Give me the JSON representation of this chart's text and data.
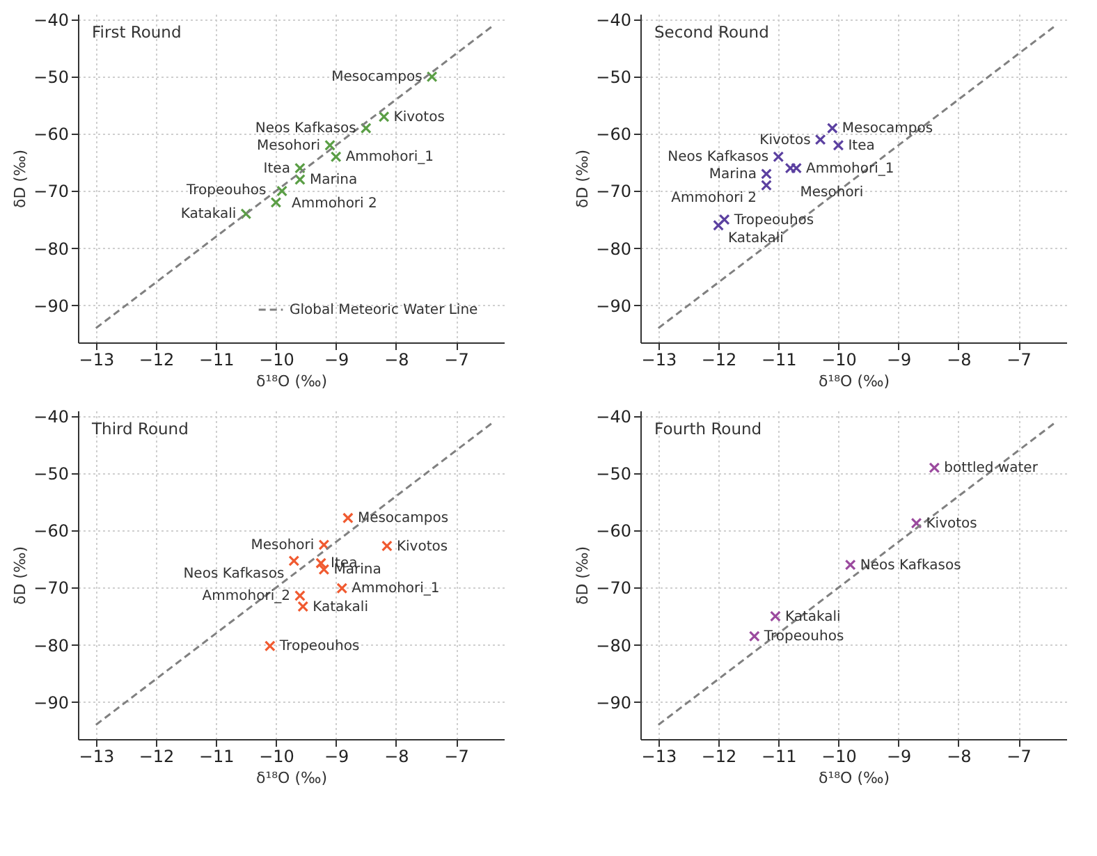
{
  "chart_data": [
    {
      "type": "scatter",
      "title": "First Round",
      "xlabel": "δ¹⁸O (‰)",
      "ylabel": "δD (‰)",
      "xlim": [
        -13.3,
        -6.2
      ],
      "ylim": [
        -96.5,
        -39
      ],
      "xticks": [
        -13,
        -12,
        -11,
        -10,
        -9,
        -8,
        -7
      ],
      "yticks": [
        -90,
        -80,
        -70,
        -60,
        -50,
        -40
      ],
      "grid": true,
      "line_style": "dashed",
      "legend": "bottom right",
      "series": [
        {
          "marker": "cross",
          "color": "#5a9e45",
          "x": [
            -7.4,
            -8.2,
            -8.5,
            -9.1,
            -9.0,
            -9.6,
            -9.6,
            -9.9,
            -10.0,
            -10.5
          ],
          "values": [
            -50,
            -57,
            -59,
            -62,
            -64,
            -66,
            -68,
            -70,
            -72,
            -74
          ]
        },
        {
          "type": "line",
          "name": "Global Meteoric Water Line",
          "color": "#808080",
          "x": [
            -13,
            -6.4
          ],
          "values": [
            -94,
            -41.2
          ]
        }
      ],
      "annotations": [
        {
          "text": "Mesocampos",
          "x": -7.4,
          "y": -50
        },
        {
          "text": "Kivotos",
          "x": -8.2,
          "y": -57
        },
        {
          "text": "Neos Kafkasos",
          "x": -8.5,
          "y": -59
        },
        {
          "text": "Mesohori",
          "x": -9.1,
          "y": -62
        },
        {
          "text": "Ammohori_1",
          "x": -9.0,
          "y": -64
        },
        {
          "text": "Itea",
          "x": -9.6,
          "y": -66
        },
        {
          "text": "Marina",
          "x": -9.6,
          "y": -68
        },
        {
          "text": "Ammohori 2",
          "x": -9.9,
          "y": -70
        },
        {
          "text": "Tropeouhos",
          "x": -10.0,
          "y": -72
        },
        {
          "text": "Katakali",
          "x": -10.5,
          "y": -74
        }
      ]
    },
    {
      "type": "scatter",
      "title": "Second Round",
      "xlabel": "δ¹⁸O (‰)",
      "ylabel": "δD (‰)",
      "xlim": [
        -13.3,
        -6.2
      ],
      "ylim": [
        -96.5,
        -39
      ],
      "xticks": [
        -13,
        -12,
        -11,
        -10,
        -9,
        -8,
        -7
      ],
      "yticks": [
        -90,
        -80,
        -70,
        -60,
        -50,
        -40
      ],
      "grid": true,
      "line_style": "dashed",
      "series": [
        {
          "marker": "cross",
          "color": "#5b40a0",
          "x": [
            -10.1,
            -10.3,
            -10.0,
            -11.0,
            -10.8,
            -10.7,
            -11.2,
            -11.2,
            -11.9,
            -12.0
          ],
          "values": [
            -59,
            -61,
            -62,
            -64,
            -66,
            -66,
            -67,
            -69,
            -75,
            -76
          ]
        },
        {
          "type": "line",
          "color": "#808080",
          "x": [
            -13,
            -6.4
          ],
          "values": [
            -94,
            -41.2
          ]
        }
      ],
      "annotations": [
        {
          "text": "Mesocampos",
          "x": -10.1,
          "y": -59
        },
        {
          "text": "Kivotos",
          "x": -10.3,
          "y": -61
        },
        {
          "text": "Itea",
          "x": -10.0,
          "y": -62
        },
        {
          "text": "Neos Kafkasos",
          "x": -11.0,
          "y": -64
        },
        {
          "text": "Mesohori",
          "x": -10.8,
          "y": -66
        },
        {
          "text": "Ammohori_1",
          "x": -10.7,
          "y": -66
        },
        {
          "text": "Marina",
          "x": -11.2,
          "y": -67
        },
        {
          "text": "Ammohori 2",
          "x": -11.2,
          "y": -69
        },
        {
          "text": "Tropeouhos",
          "x": -11.9,
          "y": -75
        },
        {
          "text": "Katakali",
          "x": -12.0,
          "y": -76
        }
      ]
    },
    {
      "type": "scatter",
      "title": "Third Round",
      "xlabel": "δ¹⁸O (‰)",
      "ylabel": "δD (‰)",
      "xlim": [
        -13.3,
        -6.2
      ],
      "ylim": [
        -96.5,
        -39
      ],
      "xticks": [
        -13,
        -12,
        -11,
        -10,
        -9,
        -8,
        -7
      ],
      "yticks": [
        -90,
        -80,
        -70,
        -60,
        -50,
        -40
      ],
      "grid": true,
      "line_style": "dashed",
      "series": [
        {
          "marker": "cross",
          "color": "#f05a30",
          "x": [
            -8.8,
            -9.2,
            -8.15,
            -9.7,
            -9.25,
            -9.2,
            -8.9,
            -9.6,
            -9.55,
            -10.1
          ],
          "values": [
            -57.8,
            -62.5,
            -62.7,
            -65.3,
            -65.7,
            -66.8,
            -70.1,
            -71.4,
            -73.3,
            -80.2
          ]
        },
        {
          "type": "line",
          "color": "#808080",
          "x": [
            -13,
            -6.4
          ],
          "values": [
            -94,
            -41.2
          ]
        }
      ],
      "annotations": [
        {
          "text": "Mesocampos",
          "x": -8.8,
          "y": -57.8
        },
        {
          "text": "Mesohori",
          "x": -9.2,
          "y": -62.5
        },
        {
          "text": "Kivotos",
          "x": -8.15,
          "y": -62.7
        },
        {
          "text": "Neos Kafkasos",
          "x": -9.7,
          "y": -65.3
        },
        {
          "text": "Itea",
          "x": -9.25,
          "y": -65.7
        },
        {
          "text": "Marina",
          "x": -9.2,
          "y": -66.8
        },
        {
          "text": "Ammohori_1",
          "x": -8.9,
          "y": -70.1
        },
        {
          "text": "Ammohori_2",
          "x": -9.6,
          "y": -71.4
        },
        {
          "text": "Katakali",
          "x": -9.55,
          "y": -73.3
        },
        {
          "text": "Tropeouhos",
          "x": -10.1,
          "y": -80.2
        }
      ]
    },
    {
      "type": "scatter",
      "title": "Fourth Round",
      "xlabel": "δ¹⁸O (‰)",
      "ylabel": "δD (‰)",
      "xlim": [
        -13.3,
        -6.2
      ],
      "ylim": [
        -96.5,
        -39
      ],
      "xticks": [
        -13,
        -12,
        -11,
        -10,
        -9,
        -8,
        -7
      ],
      "yticks": [
        -90,
        -80,
        -70,
        -60,
        -50,
        -40
      ],
      "grid": true,
      "line_style": "dashed",
      "series": [
        {
          "marker": "cross",
          "color": "#9b4a9e",
          "x": [
            -8.4,
            -8.7,
            -9.8,
            -11.05,
            -11.4
          ],
          "values": [
            -49,
            -58.7,
            -66,
            -75,
            -78.5
          ]
        },
        {
          "type": "line",
          "color": "#808080",
          "x": [
            -13,
            -6.4
          ],
          "values": [
            -94,
            -41.2
          ]
        }
      ],
      "annotations": [
        {
          "text": "bottled water",
          "x": -8.4,
          "y": -49
        },
        {
          "text": "Kivotos",
          "x": -8.7,
          "y": -58.7
        },
        {
          "text": "Neos Kafkasos",
          "x": -9.8,
          "y": -66
        },
        {
          "text": "Katakali",
          "x": -11.05,
          "y": -75
        },
        {
          "text": "Tropeouhos",
          "x": -11.4,
          "y": -78.5
        }
      ]
    }
  ]
}
